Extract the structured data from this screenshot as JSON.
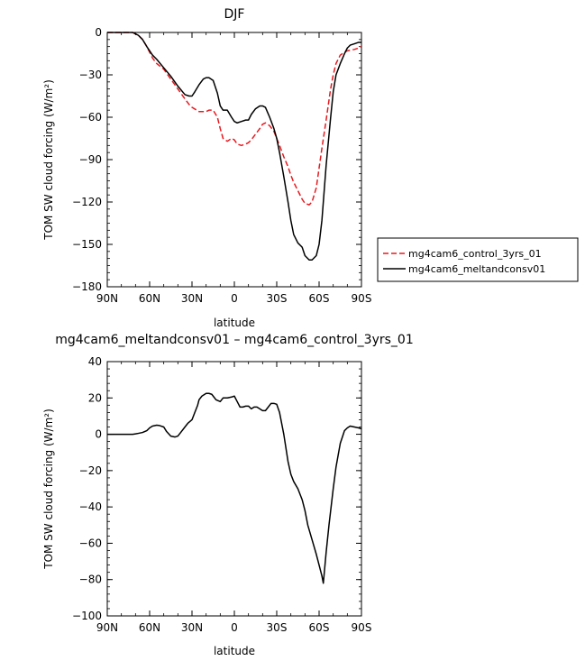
{
  "chart_data": [
    {
      "type": "line",
      "title": "DJF",
      "xlabel": "latitude",
      "ylabel": "TOM SW cloud forcing (W/m²)",
      "xlim": [
        90,
        -90
      ],
      "ylim": [
        -180,
        0
      ],
      "x_tick_values": [
        90,
        60,
        30,
        0,
        -30,
        -60,
        -90
      ],
      "x_tick_labels": [
        "90N",
        "60N",
        "30N",
        "0",
        "30S",
        "60S",
        "90S"
      ],
      "y_tick_values": [
        0,
        -30,
        -60,
        -90,
        -120,
        -150,
        -180
      ],
      "y_tick_labels": [
        "0",
        "−30",
        "−60",
        "−90",
        "−120",
        "−150",
        "−180"
      ],
      "grid": false,
      "legend_position": "right",
      "series": [
        {
          "name": "mg4cam6_control_3yrs_01",
          "color": "#e8191f",
          "dash": true,
          "x": [
            90,
            80,
            75,
            72,
            70,
            68,
            65,
            62,
            58,
            55,
            50,
            45,
            40,
            35,
            32,
            30,
            25,
            20,
            18,
            15,
            12,
            10,
            8,
            5,
            2,
            0,
            -2,
            -5,
            -8,
            -10,
            -12,
            -15,
            -18,
            -20,
            -22,
            -25,
            -28,
            -30,
            -32,
            -35,
            -38,
            -40,
            -42,
            -45,
            -48,
            -50,
            -53,
            -55,
            -58,
            -60,
            -62,
            -65,
            -68,
            -70,
            -72,
            -75,
            -78,
            -80,
            -85,
            -88,
            -90
          ],
          "y": [
            0,
            0,
            0,
            0,
            -1,
            -2,
            -5,
            -10,
            -18,
            -22,
            -26,
            -33,
            -40,
            -47,
            -51,
            -53,
            -56,
            -56,
            -55,
            -55,
            -60,
            -68,
            -75,
            -77,
            -75,
            -76,
            -79,
            -80,
            -79,
            -78,
            -76,
            -72,
            -68,
            -65,
            -64,
            -66,
            -70,
            -75,
            -80,
            -88,
            -95,
            -101,
            -106,
            -112,
            -118,
            -121,
            -122,
            -120,
            -110,
            -96,
            -82,
            -62,
            -41,
            -30,
            -22,
            -16,
            -14,
            -13,
            -12,
            -11,
            -10
          ]
        },
        {
          "name": "mg4cam6_meltandconsv01",
          "color": "#000000",
          "dash": false,
          "x": [
            90,
            80,
            75,
            72,
            70,
            68,
            65,
            62,
            58,
            55,
            50,
            45,
            40,
            35,
            32,
            30,
            28,
            25,
            22,
            20,
            18,
            15,
            12,
            10,
            8,
            5,
            2,
            0,
            -2,
            -5,
            -8,
            -10,
            -12,
            -15,
            -18,
            -20,
            -22,
            -25,
            -28,
            -30,
            -32,
            -35,
            -38,
            -40,
            -42,
            -45,
            -48,
            -50,
            -53,
            -55,
            -58,
            -60,
            -62,
            -65,
            -68,
            -70,
            -72,
            -75,
            -78,
            -80,
            -82,
            -85,
            -88,
            -90
          ],
          "y": [
            0,
            0,
            0,
            0,
            -1,
            -2,
            -5,
            -10,
            -16,
            -19,
            -25,
            -31,
            -38,
            -44,
            -45,
            -45,
            -42,
            -37,
            -33,
            -32,
            -32,
            -34,
            -43,
            -52,
            -55,
            -55,
            -60,
            -63,
            -64,
            -63,
            -62,
            -62,
            -58,
            -54,
            -52,
            -52,
            -53,
            -60,
            -68,
            -75,
            -85,
            -102,
            -120,
            -133,
            -143,
            -149,
            -152,
            -158,
            -161,
            -161,
            -158,
            -150,
            -133,
            -94,
            -62,
            -42,
            -30,
            -22,
            -15,
            -11,
            -9,
            -8,
            -7,
            -7
          ]
        }
      ]
    },
    {
      "type": "line",
      "title": "mg4cam6_meltandconsv01 – mg4cam6_control_3yrs_01",
      "xlabel": "latitude",
      "ylabel": "TOM SW cloud forcing (W/m²)",
      "xlim": [
        90,
        -90
      ],
      "ylim": [
        -100,
        40
      ],
      "x_tick_values": [
        90,
        60,
        30,
        0,
        -30,
        -60,
        -90
      ],
      "x_tick_labels": [
        "90N",
        "60N",
        "30N",
        "0",
        "30S",
        "60S",
        "90S"
      ],
      "y_tick_values": [
        40,
        20,
        0,
        -20,
        -40,
        -60,
        -80,
        -100
      ],
      "y_tick_labels": [
        "40",
        "20",
        "0",
        "−20",
        "−40",
        "−60",
        "−80",
        "−100"
      ],
      "grid": false,
      "series": [
        {
          "color": "#000000",
          "dash": false,
          "x": [
            90,
            80,
            75,
            72,
            70,
            68,
            65,
            62,
            60,
            58,
            55,
            53,
            50,
            48,
            45,
            42,
            40,
            38,
            35,
            33,
            30,
            28,
            26,
            25,
            23,
            21,
            20,
            18,
            16,
            15,
            13,
            10,
            8,
            5,
            2,
            0,
            -2,
            -4,
            -6,
            -8,
            -10,
            -12,
            -14,
            -16,
            -18,
            -20,
            -22,
            -24,
            -26,
            -28,
            -30,
            -32,
            -35,
            -38,
            -40,
            -42,
            -45,
            -48,
            -50,
            -52,
            -55,
            -58,
            -60,
            -62,
            -63,
            -65,
            -67,
            -70,
            -72,
            -75,
            -78,
            -80,
            -82,
            -85,
            -88,
            -90
          ],
          "y": [
            0,
            0,
            0,
            0,
            0.2,
            0.5,
            1,
            2,
            3.5,
            4.5,
            5,
            4.8,
            4,
            1.5,
            -1,
            -1.5,
            -1,
            1,
            4,
            6,
            8,
            12,
            16,
            19,
            21,
            22,
            22.5,
            22.5,
            22,
            21,
            19,
            18,
            20,
            20,
            20.5,
            21,
            18,
            15,
            15,
            15.5,
            15.5,
            14,
            15,
            15,
            14,
            13,
            13,
            15,
            17,
            17,
            16.5,
            12,
            0,
            -15,
            -22,
            -26,
            -30,
            -36,
            -42,
            -50,
            -58,
            -66,
            -72,
            -78,
            -82,
            -65,
            -50,
            -30,
            -18,
            -5,
            2,
            3.5,
            4.5,
            4,
            3.5,
            3
          ]
        }
      ]
    }
  ]
}
